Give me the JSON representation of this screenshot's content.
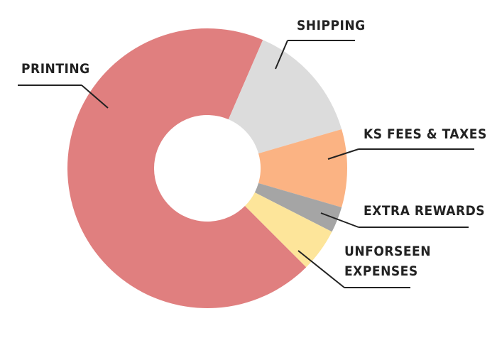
{
  "chart_data": {
    "type": "donut",
    "categories": [
      "PRINTING",
      "SHIPPING",
      "KS FEES & TAXES",
      "EXTRA REWARDS",
      "UNFORSEEN EXPENSES"
    ],
    "values": [
      69,
      14,
      9,
      3,
      5
    ],
    "colors": [
      "#e07f7f",
      "#dcdcdc",
      "#fbb383",
      "#a5a5a5",
      "#fde59a"
    ]
  }
}
